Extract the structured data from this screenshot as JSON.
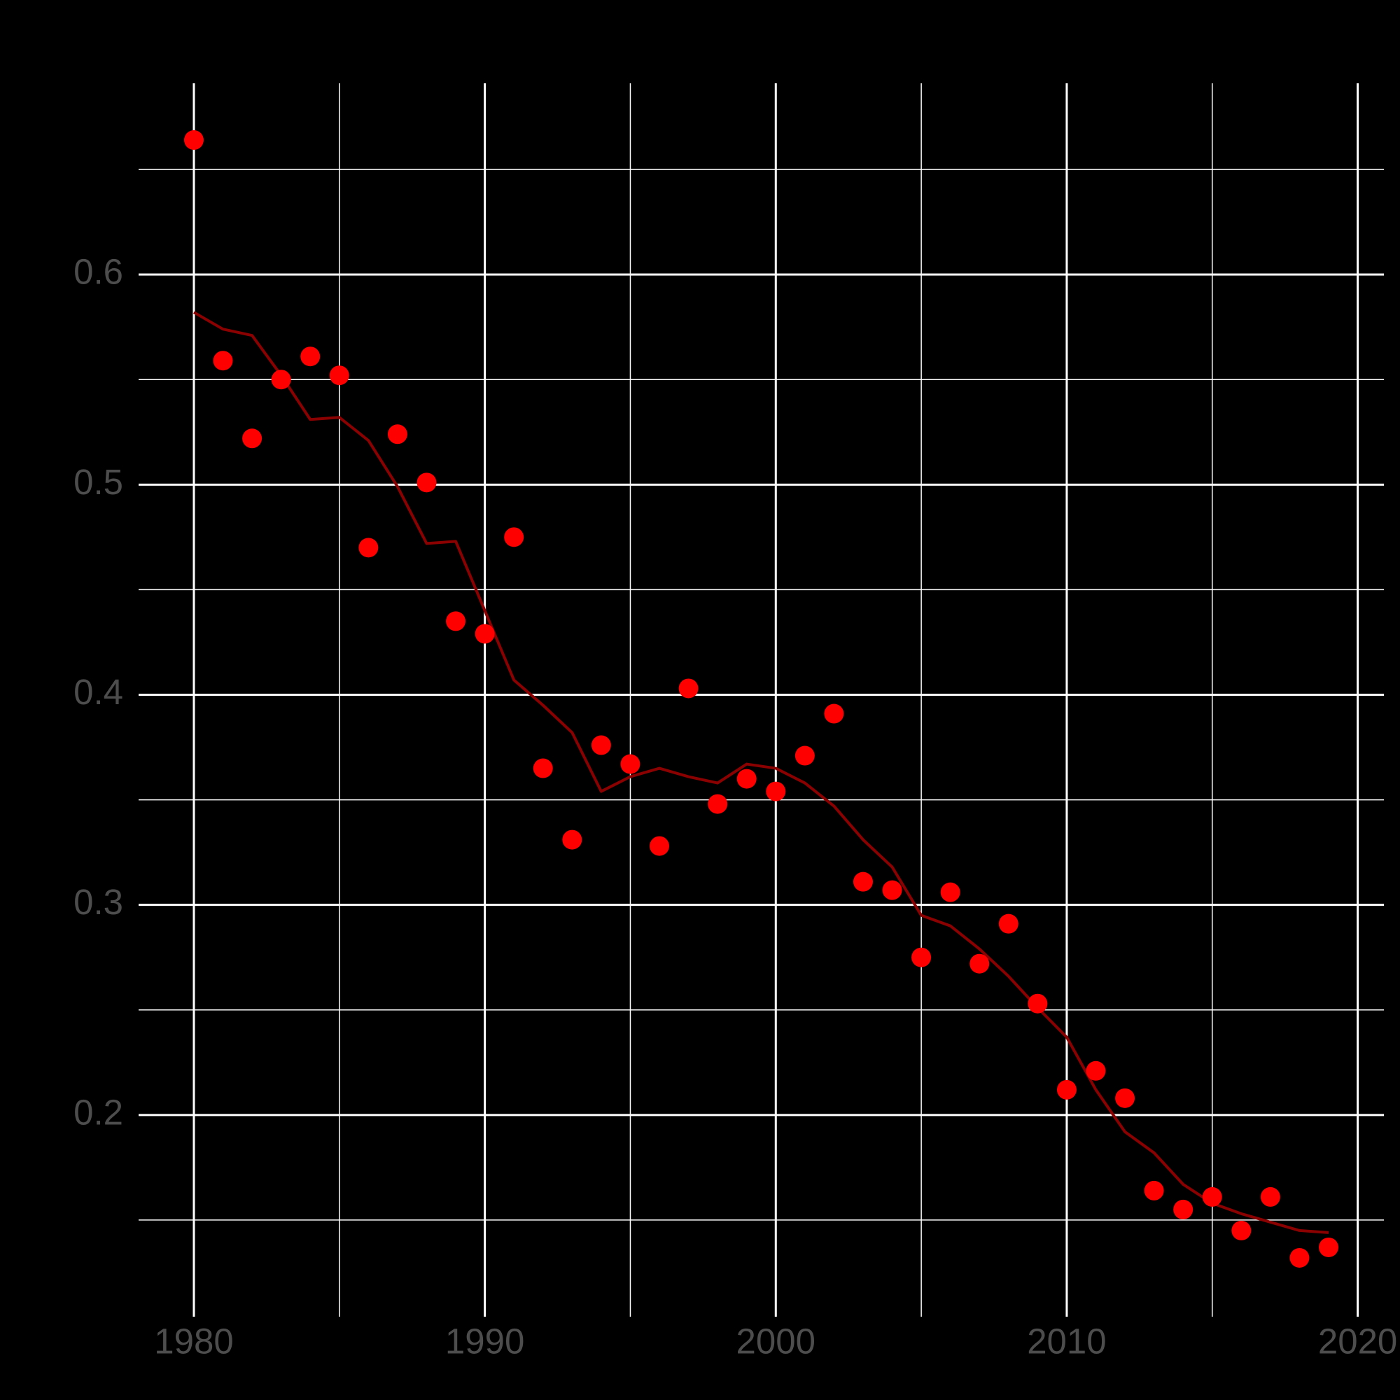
{
  "chart_data": {
    "type": "scatter",
    "x": [
      1980,
      1981,
      1982,
      1983,
      1984,
      1985,
      1986,
      1987,
      1988,
      1989,
      1990,
      1991,
      1992,
      1993,
      1994,
      1995,
      1996,
      1997,
      1998,
      1999,
      2000,
      2001,
      2002,
      2003,
      2004,
      2005,
      2006,
      2007,
      2008,
      2009,
      2010,
      2011,
      2012,
      2013,
      2014,
      2015,
      2016,
      2017,
      2018,
      2019
    ],
    "series": [
      {
        "type": "scatter",
        "color": "#ff0000",
        "values": [
          0.664,
          0.559,
          0.522,
          0.55,
          0.561,
          0.552,
          0.47,
          0.524,
          0.501,
          0.435,
          0.429,
          0.475,
          0.365,
          0.331,
          0.376,
          0.367,
          0.328,
          0.403,
          0.348,
          0.36,
          0.354,
          0.371,
          0.391,
          0.311,
          0.307,
          0.275,
          0.306,
          0.272,
          0.291,
          0.253,
          0.212,
          0.221,
          0.208,
          0.164,
          0.155,
          0.161,
          0.145,
          0.161,
          0.132,
          0.137
        ]
      },
      {
        "type": "line",
        "color": "#8b0000",
        "values": [
          0.582,
          0.574,
          0.571,
          0.552,
          0.531,
          0.532,
          0.521,
          0.499,
          0.472,
          0.473,
          0.44,
          0.407,
          0.395,
          0.382,
          0.354,
          0.361,
          0.365,
          0.361,
          0.358,
          0.367,
          0.365,
          0.358,
          0.347,
          0.331,
          0.318,
          0.295,
          0.29,
          0.279,
          0.266,
          0.251,
          0.237,
          0.212,
          0.192,
          0.182,
          0.167,
          0.158,
          0.153,
          0.149,
          0.145,
          0.144
        ]
      }
    ],
    "xlim": [
      1978.1,
      2020.9
    ],
    "ylim": [
      0.104,
      0.691
    ],
    "xticks": [
      1980,
      1990,
      2000,
      2010,
      2020
    ],
    "yticks": [
      0.2,
      0.3,
      0.4,
      0.5,
      0.6
    ],
    "xminor": [
      1985,
      1995,
      2005,
      2015
    ],
    "yminor": [
      0.15,
      0.25,
      0.35,
      0.45,
      0.55,
      0.65
    ],
    "grid": true
  }
}
